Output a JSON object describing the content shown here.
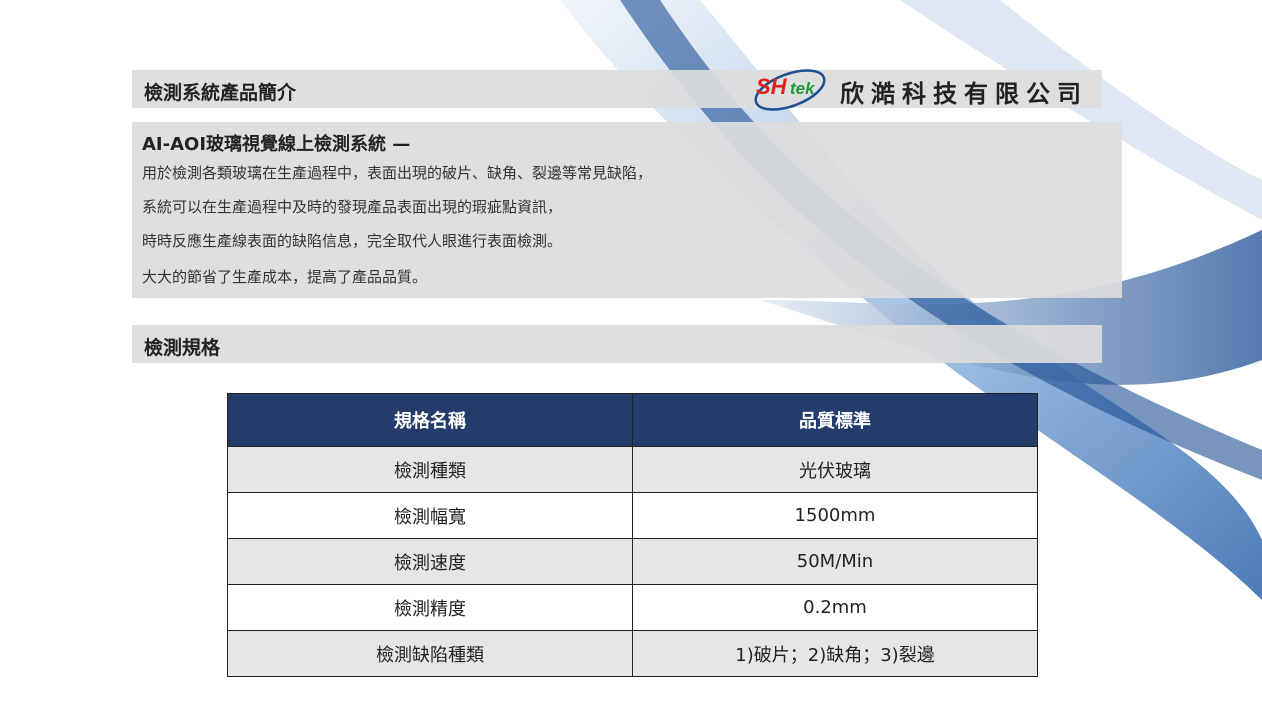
{
  "header": {
    "section_title": "檢測系統產品簡介",
    "logo_text": "SHtek",
    "company_name": "欣澔科技有限公司"
  },
  "intro": {
    "title": "AI-AOI玻璃視覺線上檢測系統 —",
    "lines": [
      "用於檢測各類玻璃在生產過程中，表面出現的破片、缺角、裂邊等常見缺陷，",
      "系統可以在生產過程中及時的發現產品表面出現的瑕疵點資訊，",
      "時時反應生產線表面的缺陷信息，完全取代人眼進行表面檢測。",
      "大大的節省了生產成本，提高了產品品質。"
    ]
  },
  "spec": {
    "section_title": "檢測規格",
    "headers": [
      "規格名稱",
      "品質標準"
    ],
    "rows": [
      [
        "檢測種類",
        "光伏玻璃"
      ],
      [
        "檢測幅寬",
        "1500mm"
      ],
      [
        "檢測速度",
        "50M/Min"
      ],
      [
        "檢測精度",
        "0.2mm"
      ],
      [
        "檢測缺陷種類",
        "1)破片；2)缺角；3)裂邊"
      ]
    ]
  },
  "colors": {
    "table_header": "#243c6c",
    "accent_blue": "#2f6db5",
    "logo_red": "#e0201a",
    "logo_green": "#1a9a3a"
  }
}
